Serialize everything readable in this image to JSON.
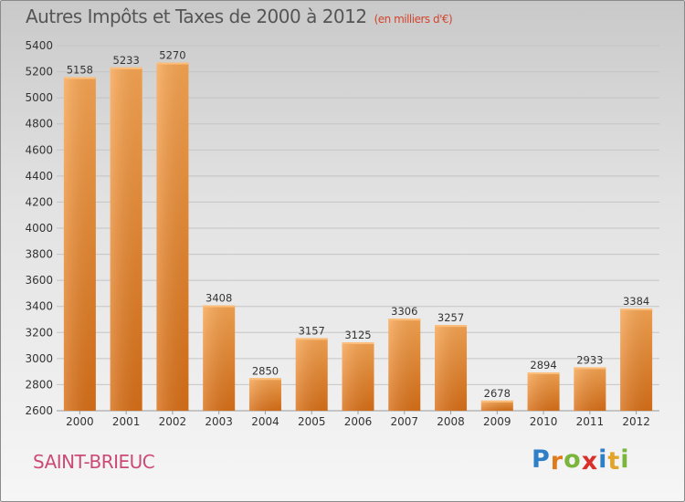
{
  "title": "Autres Impôts et Taxes de 2000 à 2012",
  "subtitle": "(en milliers d'€)",
  "city": "SAINT-BRIEUC",
  "logo": {
    "letters": [
      "P",
      "r",
      "o",
      "x",
      "i",
      "t",
      "i"
    ],
    "colors": [
      "#2f7fc8",
      "#e07b1d",
      "#7bb63c",
      "#d9302b",
      "#2f7fc8",
      "#e2a42a",
      "#7bb63c"
    ]
  },
  "chart_data": {
    "type": "bar",
    "categories": [
      "2000",
      "2001",
      "2002",
      "2003",
      "2004",
      "2005",
      "2006",
      "2007",
      "2008",
      "2009",
      "2010",
      "2011",
      "2012"
    ],
    "values": [
      5158,
      5233,
      5270,
      3408,
      2850,
      3157,
      3125,
      3306,
      3257,
      2678,
      2894,
      2933,
      3384
    ],
    "ylim": [
      2600,
      5400
    ],
    "yticks": [
      2600,
      2800,
      3000,
      3200,
      3400,
      3600,
      3800,
      4000,
      4200,
      4400,
      4600,
      4800,
      5000,
      5200,
      5400
    ],
    "grid": true,
    "bar_color": "#f0913a"
  }
}
